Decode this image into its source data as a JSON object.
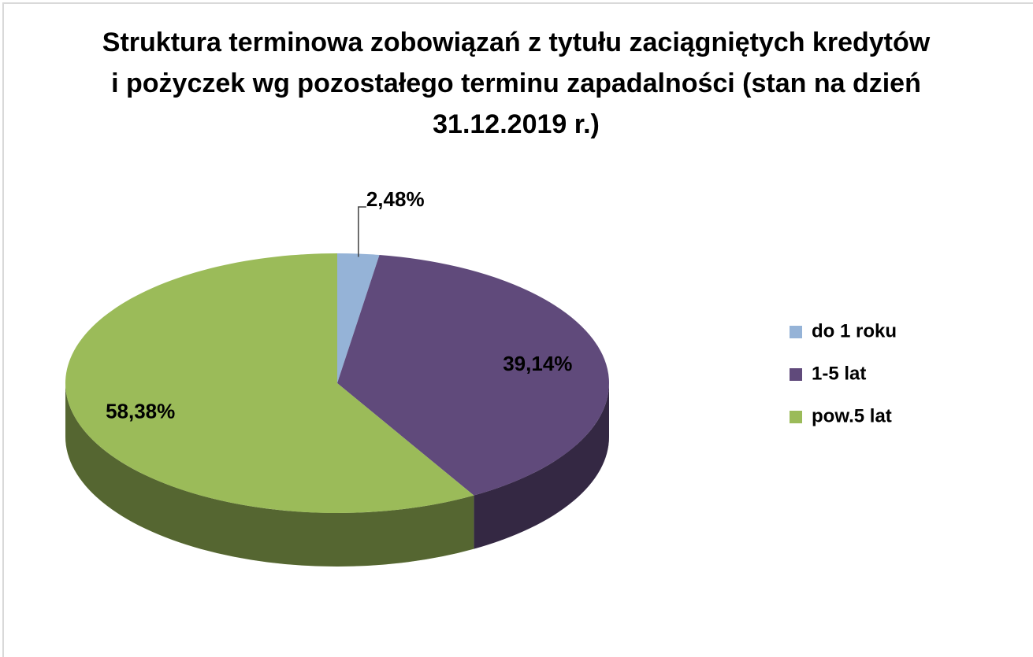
{
  "chart_data": {
    "type": "pie3d",
    "title": "Struktura terminowa zobowiązań z tytułu zaciągniętych kredytów i pożyczek wg pozostałego terminu zapadalności (stan na dzień 31.12.2019 r.)",
    "categories": [
      "do 1 roku",
      "1-5 lat",
      "pow.5 lat"
    ],
    "values": [
      2.48,
      39.14,
      58.38
    ],
    "value_labels": [
      "2,48%",
      "39,14%",
      "58,38%"
    ],
    "colors": [
      "#95b3d7",
      "#604a7b",
      "#9bbb59"
    ],
    "legend": "right"
  }
}
